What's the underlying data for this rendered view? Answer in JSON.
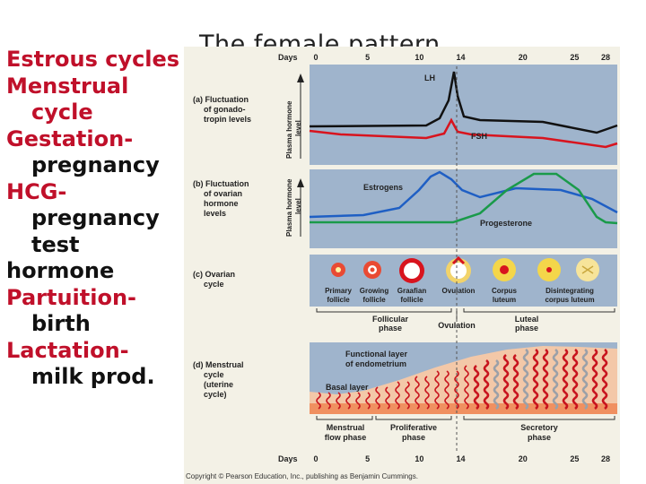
{
  "title": "The female pattern",
  "side_list": [
    {
      "text": "Estrous cycles",
      "color": "red",
      "indent": false
    },
    {
      "text": "Menstrual",
      "color": "red",
      "indent": false
    },
    {
      "text": "cycle",
      "color": "red",
      "indent": true
    },
    {
      "text": "Gestation-",
      "color": "red",
      "indent": false
    },
    {
      "text": "pregnancy",
      "color": "dark",
      "indent": true
    },
    {
      "text": "HCG-",
      "color": "red",
      "indent": false
    },
    {
      "text": "pregnancy",
      "color": "dark",
      "indent": true
    },
    {
      "text": "test",
      "color": "dark",
      "indent": true
    },
    {
      "text": "hormone",
      "color": "dark",
      "indent": false
    },
    {
      "text": "Partuition-",
      "color": "red",
      "indent": false
    },
    {
      "text": "birth",
      "color": "dark",
      "indent": true
    },
    {
      "text": "Lactation-",
      "color": "red",
      "indent": false
    },
    {
      "text": "milk prod.",
      "color": "dark",
      "indent": true
    }
  ],
  "figure": {
    "days_label": "Days",
    "days": [
      "0",
      "5",
      "10",
      "14",
      "20",
      "25",
      "28"
    ],
    "panel_a": {
      "label": [
        "(a) Fluctuation",
        "of gonado-",
        "tropin levels"
      ],
      "axis": [
        "Plasma hormone",
        "level"
      ],
      "lh": "LH",
      "fsh": "FSH"
    },
    "panel_b": {
      "label": [
        "(b) Fluctuation",
        "of ovarian",
        "hormone",
        "levels"
      ],
      "axis": [
        "Plasma hormone",
        "level"
      ],
      "estrogens": "Estrogens",
      "progesterone": "Progesterone"
    },
    "panel_c": {
      "label": [
        "(c) Ovarian",
        "cycle"
      ],
      "stages": [
        {
          "l1": "Primary",
          "l2": "follicle"
        },
        {
          "l1": "Growing",
          "l2": "follicle"
        },
        {
          "l1": "Graafian",
          "l2": "follicle"
        },
        {
          "l1": "Ovulation",
          "l2": ""
        },
        {
          "l1": "Corpus",
          "l2": "luteum"
        },
        {
          "l1": "Disintegrating",
          "l2": "corpus luteum"
        }
      ],
      "follicular": [
        "Follicular",
        "phase"
      ],
      "ovulation": "Ovulation",
      "luteal": [
        "Luteal",
        "phase"
      ]
    },
    "panel_d": {
      "label": [
        "(d) Menstrual",
        "cycle",
        "(uterine",
        "cycle)"
      ],
      "functional": [
        "Functional layer",
        "of endometrium"
      ],
      "basal": "Basal layer",
      "phases": [
        {
          "l1": "Menstrual",
          "l2": "flow phase"
        },
        {
          "l1": "Proliferative",
          "l2": "phase"
        },
        {
          "l1": "Secretory",
          "l2": "phase"
        }
      ]
    },
    "copyright": "Copyright © Pearson Education, Inc., publishing as Benjamin Cummings.",
    "colors": {
      "lh": "#111111",
      "fsh": "#d8141e",
      "estrogen": "#1f5fc4",
      "progesterone": "#1a9a4a",
      "panel_bg": "#9fb4cc",
      "frame": "#f3f1e6",
      "endometrium": "#f3c8a8",
      "artery": "#c8141e"
    }
  }
}
